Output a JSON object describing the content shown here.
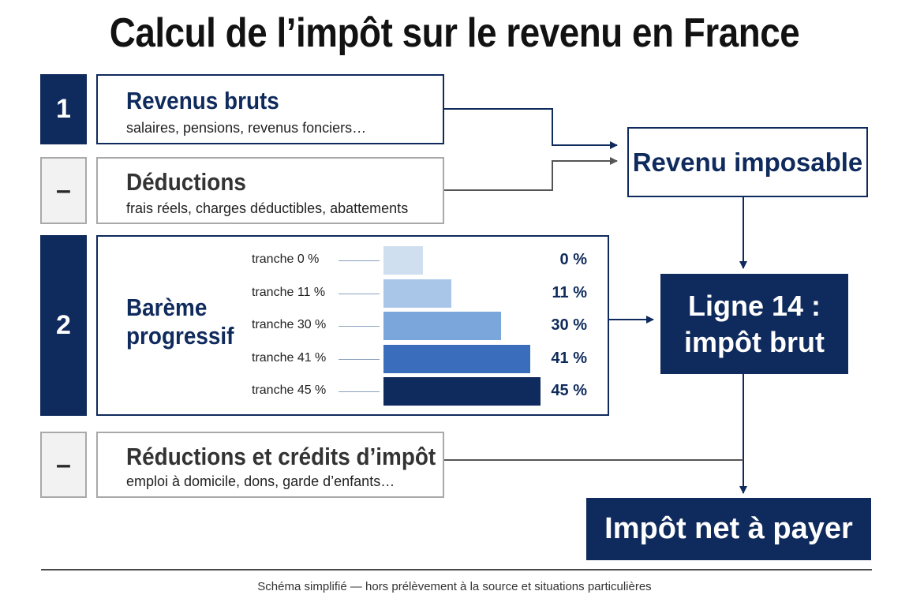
{
  "title": "Calcul de l’impôt sur le revenu en France",
  "steps": {
    "s1": "1",
    "minus1": "–",
    "s2": "2",
    "minus2": "–"
  },
  "revenus": {
    "title": "Revenus bruts",
    "subtitle": "salaires, pensions, revenus fonciers…"
  },
  "deductions": {
    "title": "Déductions",
    "subtitle": "frais réels, charges déductibles, abattements"
  },
  "bareme": {
    "title_line1": "Barème",
    "title_line2": "progressif",
    "tranches": [
      {
        "label": "tranche 0 %",
        "pct": "0 %",
        "rate": 0,
        "color": "#cfdff0"
      },
      {
        "label": "tranche 11 %",
        "pct": "11 %",
        "rate": 11,
        "color": "#a9c6e9"
      },
      {
        "label": "tranche 30 %",
        "pct": "30 %",
        "rate": 30,
        "color": "#7aa6dc"
      },
      {
        "label": "tranche 41 %",
        "pct": "41 %",
        "rate": 41,
        "color": "#3b6dbd"
      },
      {
        "label": "tranche 45 %",
        "pct": "45 %",
        "rate": 45,
        "color": "#0f2a5c"
      }
    ]
  },
  "reductions": {
    "title": "Réductions et crédits d’impôt",
    "subtitle": "emploi à domicile, dons, garde d’enfants…"
  },
  "revenu_imposable": "Revenu imposable",
  "ligne14": {
    "line1": "Ligne 14 :",
    "line2": "impôt brut"
  },
  "net": "Impôt net à payer",
  "footer": "Schéma simplifié — hors prélèvement à la source et situations particulières",
  "colors": {
    "navy": "#0f2a5c",
    "grey_border": "#a9a9a9"
  }
}
